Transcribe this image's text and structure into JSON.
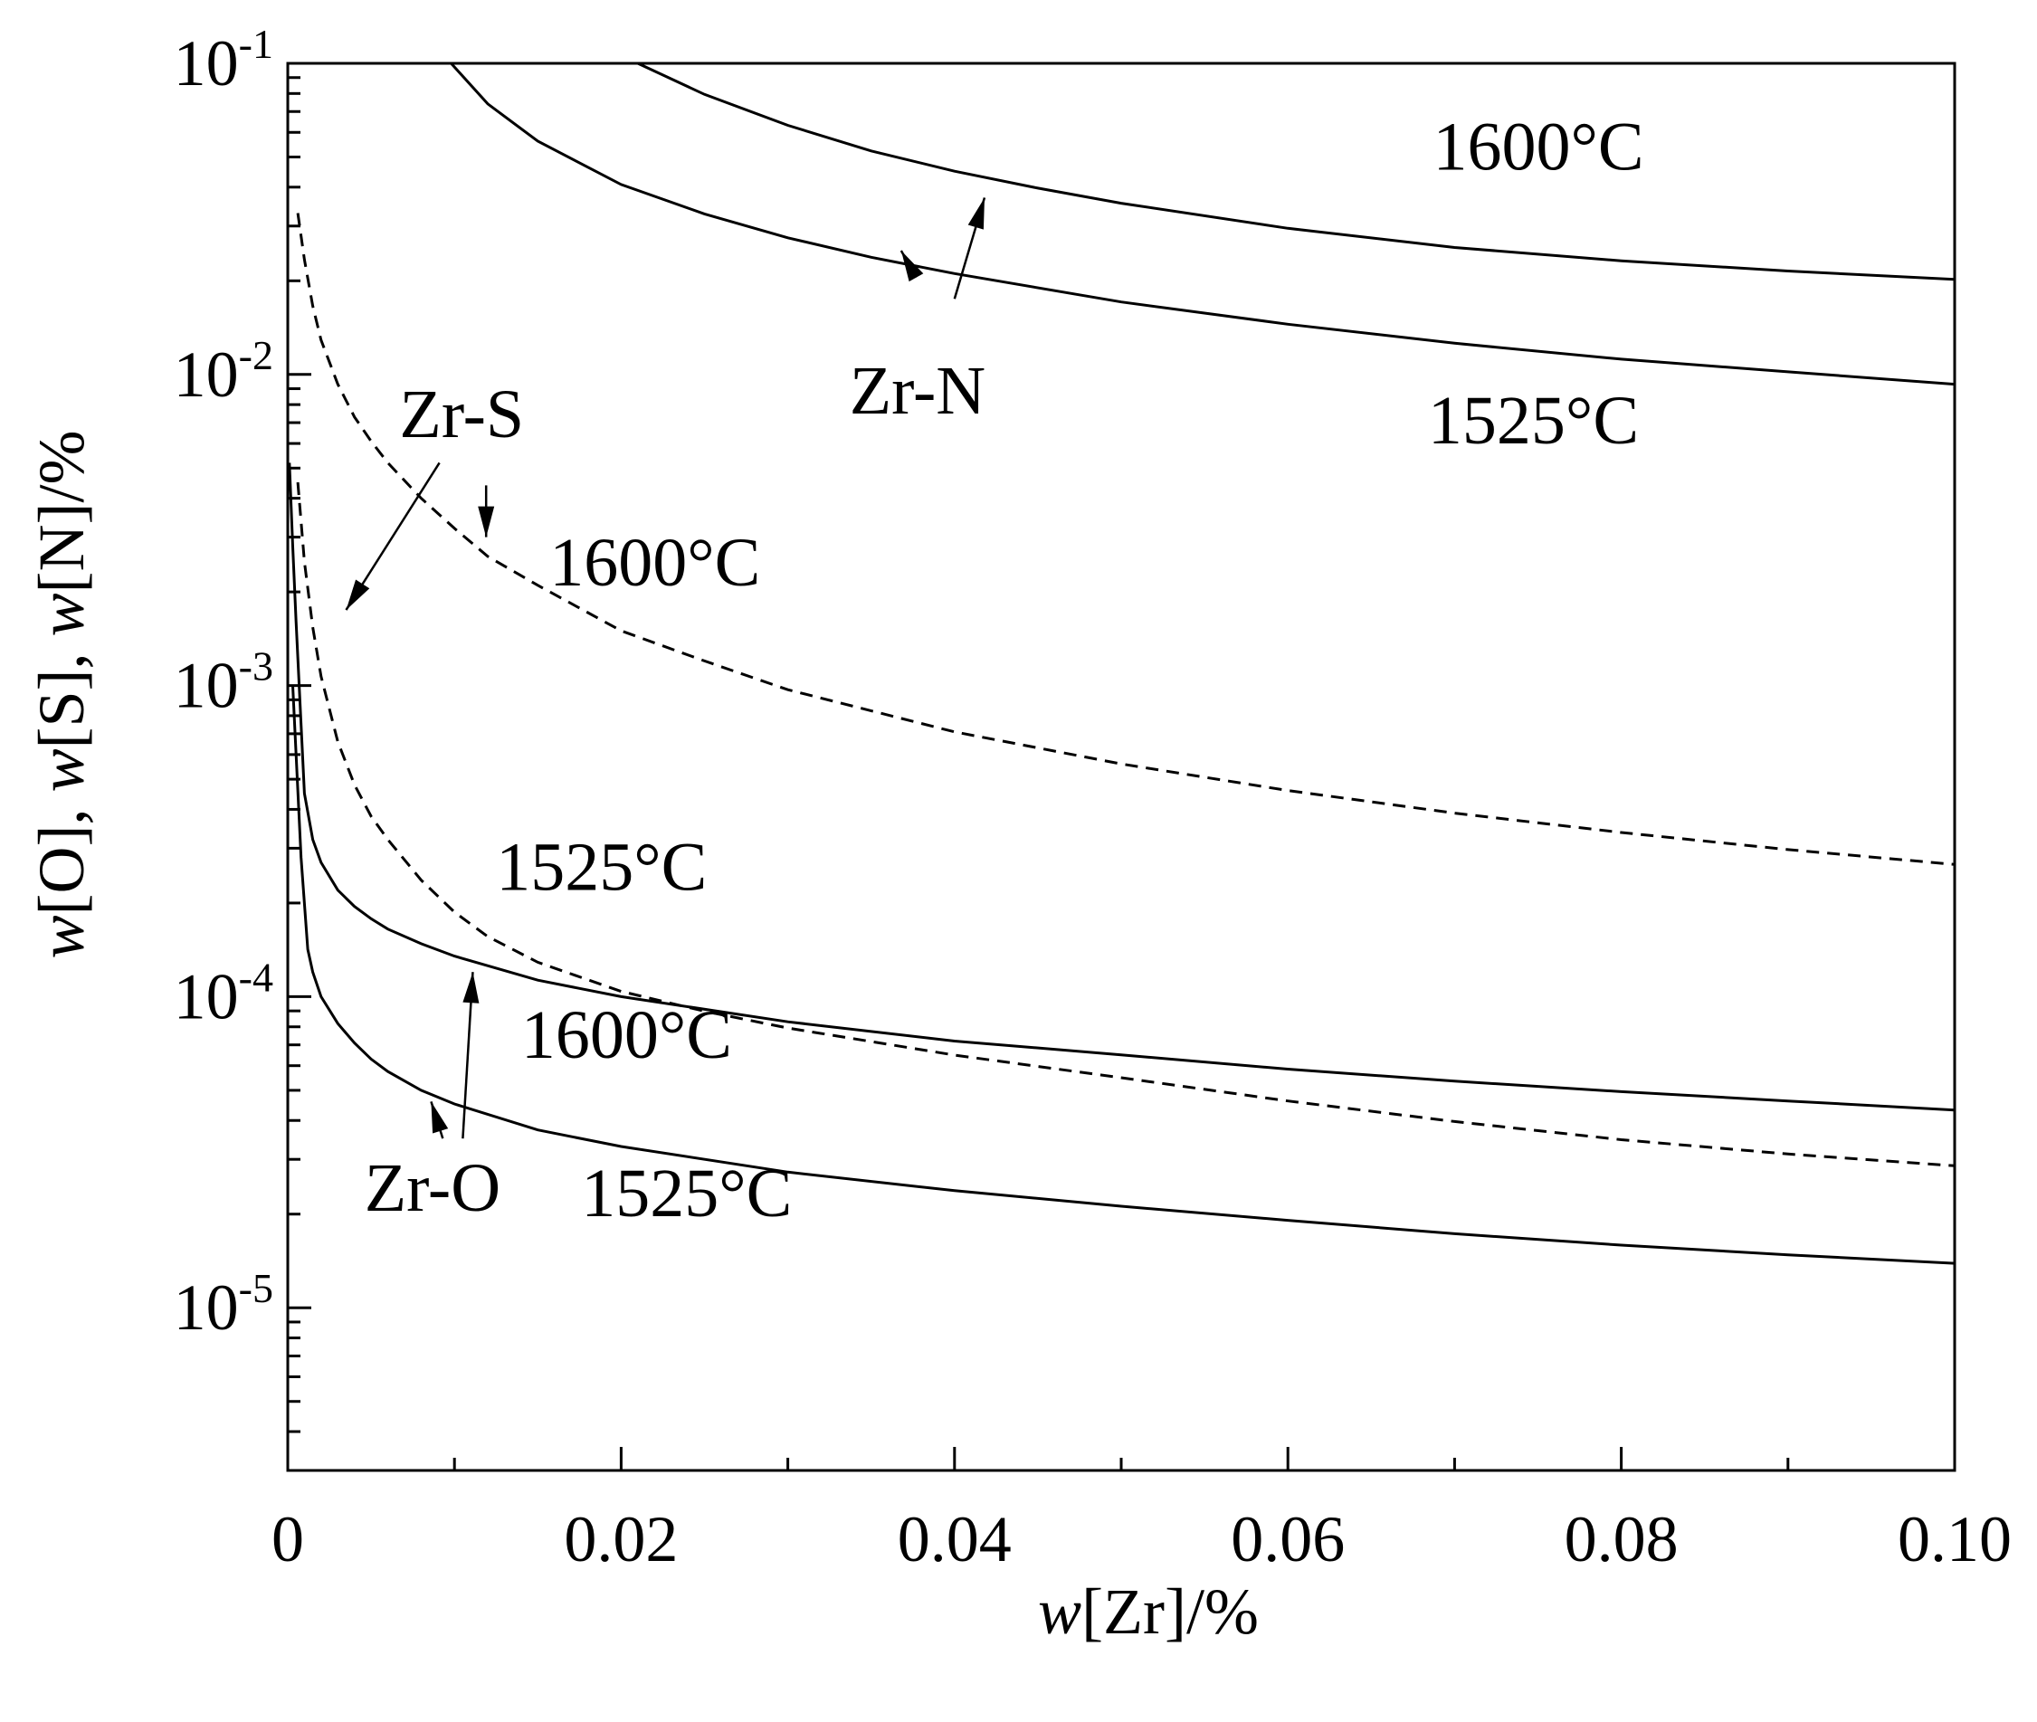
{
  "chart_data": {
    "type": "line",
    "title": "",
    "xlabel": {
      "italic": "w",
      "rest": "[Zr]/%"
    },
    "ylabel": "w[O], w[S], w[N]/%",
    "xlim": [
      0,
      0.1
    ],
    "ylim": [
      3e-06,
      0.1
    ],
    "yscale": "log",
    "grid": false,
    "x_ticks": [
      {
        "value": 0,
        "label": "0"
      },
      {
        "value": 0.02,
        "label": "0.02"
      },
      {
        "value": 0.04,
        "label": "0.04"
      },
      {
        "value": 0.06,
        "label": "0.06"
      },
      {
        "value": 0.08,
        "label": "0.08"
      },
      {
        "value": 0.1,
        "label": "0.10"
      }
    ],
    "y_ticks": [
      {
        "value": 0.1,
        "base": "10",
        "exp": "-1"
      },
      {
        "value": 0.01,
        "base": "10",
        "exp": "-2"
      },
      {
        "value": 0.001,
        "base": "10",
        "exp": "-3"
      },
      {
        "value": 0.0001,
        "base": "10",
        "exp": "-4"
      },
      {
        "value": 1e-05,
        "base": "10",
        "exp": "-5"
      }
    ],
    "series": [
      {
        "system": "Zr-N",
        "temperature": "1600°C",
        "style": "solid",
        "x": [
          0.021,
          0.025,
          0.03,
          0.035,
          0.04,
          0.045,
          0.05,
          0.06,
          0.07,
          0.08,
          0.09,
          0.1
        ],
        "y": [
          0.1,
          0.0795,
          0.0632,
          0.0523,
          0.045,
          0.0397,
          0.0355,
          0.0295,
          0.0256,
          0.0232,
          0.0215,
          0.0202
        ]
      },
      {
        "system": "Zr-N",
        "temperature": "1525°C",
        "style": "solid",
        "x": [
          0.0098,
          0.012,
          0.015,
          0.02,
          0.025,
          0.03,
          0.035,
          0.04,
          0.05,
          0.06,
          0.07,
          0.08,
          0.09,
          0.1
        ],
        "y": [
          0.1,
          0.0741,
          0.0562,
          0.0408,
          0.0328,
          0.0275,
          0.0238,
          0.0211,
          0.0171,
          0.0145,
          0.0126,
          0.0112,
          0.0102,
          0.0093
        ]
      },
      {
        "system": "Zr-S",
        "temperature": "1600°C",
        "style": "dashed",
        "x": [
          0.0006,
          0.001,
          0.0015,
          0.002,
          0.003,
          0.004,
          0.005,
          0.006,
          0.008,
          0.01,
          0.012,
          0.015,
          0.02,
          0.025,
          0.03,
          0.04,
          0.05,
          0.06,
          0.07,
          0.08,
          0.09,
          0.1
        ],
        "y": [
          0.033,
          0.0234,
          0.0166,
          0.0129,
          0.0093,
          0.0073,
          0.0061,
          0.0052,
          0.004,
          0.0032,
          0.0026,
          0.0021,
          0.0015,
          0.0012,
          0.00097,
          0.00071,
          0.00056,
          0.00046,
          0.000389,
          0.000337,
          0.000297,
          0.000266
        ]
      },
      {
        "system": "Zr-S",
        "temperature": "1525°C",
        "style": "dashed",
        "x": [
          0.0006,
          0.001,
          0.0015,
          0.002,
          0.003,
          0.004,
          0.005,
          0.006,
          0.008,
          0.01,
          0.012,
          0.015,
          0.02,
          0.025,
          0.03,
          0.04,
          0.05,
          0.06,
          0.07,
          0.08,
          0.09,
          0.1
        ],
        "y": [
          0.0045,
          0.0025,
          0.00154,
          0.00107,
          0.00066,
          0.00048,
          0.00038,
          0.00032,
          0.000237,
          0.000187,
          0.000156,
          0.000129,
          0.000104,
          8.98e-05,
          7.93e-05,
          6.49e-05,
          5.49e-05,
          4.62e-05,
          3.97e-05,
          3.47e-05,
          3.12e-05,
          2.86e-05
        ]
      },
      {
        "system": "Zr-O",
        "temperature": "1600°C",
        "style": "solid",
        "x": [
          0.0001,
          0.0003,
          0.0005,
          0.001,
          0.0015,
          0.002,
          0.003,
          0.004,
          0.005,
          0.006,
          0.008,
          0.01,
          0.015,
          0.02,
          0.03,
          0.04,
          0.05,
          0.06,
          0.07,
          0.08,
          0.09,
          0.1
        ],
        "y": [
          0.0052,
          0.0028,
          0.0016,
          0.00045,
          0.00032,
          0.00027,
          0.00022,
          0.000195,
          0.000178,
          0.000165,
          0.000148,
          0.000135,
          0.000113,
          0.0001,
          8.3e-05,
          7.2e-05,
          6.5e-05,
          5.85e-05,
          5.35e-05,
          4.95e-05,
          4.62e-05,
          4.32e-05
        ]
      },
      {
        "system": "Zr-O",
        "temperature": "1525°C",
        "style": "solid",
        "x": [
          0.0003,
          0.0005,
          0.0008,
          0.0012,
          0.0015,
          0.002,
          0.003,
          0.004,
          0.005,
          0.006,
          0.008,
          0.01,
          0.015,
          0.02,
          0.03,
          0.04,
          0.05,
          0.06,
          0.07,
          0.08,
          0.09,
          0.1
        ],
        "y": [
          0.001,
          0.0006,
          0.00028,
          0.000142,
          0.00012,
          0.0001,
          8.2e-05,
          7.1e-05,
          6.3e-05,
          5.75e-05,
          5e-05,
          4.52e-05,
          3.73e-05,
          3.3e-05,
          2.73e-05,
          2.38e-05,
          2.12e-05,
          1.91e-05,
          1.73e-05,
          1.59e-05,
          1.48e-05,
          1.39e-05
        ]
      }
    ],
    "annotations": [
      {
        "text": "1600°C",
        "x": 0.0687,
        "y": 0.0455,
        "anchor": "start"
      },
      {
        "text": "1525°C",
        "x": 0.0684,
        "y": 0.006,
        "anchor": "start"
      },
      {
        "text": "Zr-N",
        "x": 0.0337,
        "y": 0.0075,
        "anchor": "start"
      },
      {
        "text": "Zr-S",
        "x": 0.0067,
        "y": 0.0063,
        "anchor": "start"
      },
      {
        "text": "1600°C",
        "x": 0.0157,
        "y": 0.0021,
        "anchor": "start"
      },
      {
        "text": "1525°C",
        "x": 0.0125,
        "y": 0.00022,
        "anchor": "start"
      },
      {
        "text": "1600°C",
        "x": 0.014,
        "y": 6.35e-05,
        "anchor": "start"
      },
      {
        "text": "Zr-O",
        "x": 0.0046,
        "y": 2.05e-05,
        "anchor": "start"
      },
      {
        "text": "1525°C",
        "x": 0.0176,
        "y": 1.97e-05,
        "anchor": "start"
      }
    ],
    "arrows": [
      {
        "label": "Zr-N",
        "from": [
          0.04,
          0.0175
        ],
        "to": [
          0.0418,
          0.037
        ]
      },
      {
        "label": "Zr-N",
        "from": [
          0.0377,
          0.0205
        ],
        "to": [
          0.0368,
          0.025
        ]
      },
      {
        "label": "Zr-S",
        "from": [
          0.0091,
          0.0052
        ],
        "to": [
          0.0035,
          0.00175
        ]
      },
      {
        "label": "Zr-S",
        "from": [
          0.0119,
          0.0044
        ],
        "to": [
          0.0119,
          0.003
        ]
      },
      {
        "label": "Zr-O",
        "from": [
          0.0105,
          3.5e-05
        ],
        "to": [
          0.0111,
          0.00012
        ]
      },
      {
        "label": "Zr-O",
        "from": [
          0.0093,
          3.5e-05
        ],
        "to": [
          0.0086,
          4.6e-05
        ]
      }
    ]
  }
}
